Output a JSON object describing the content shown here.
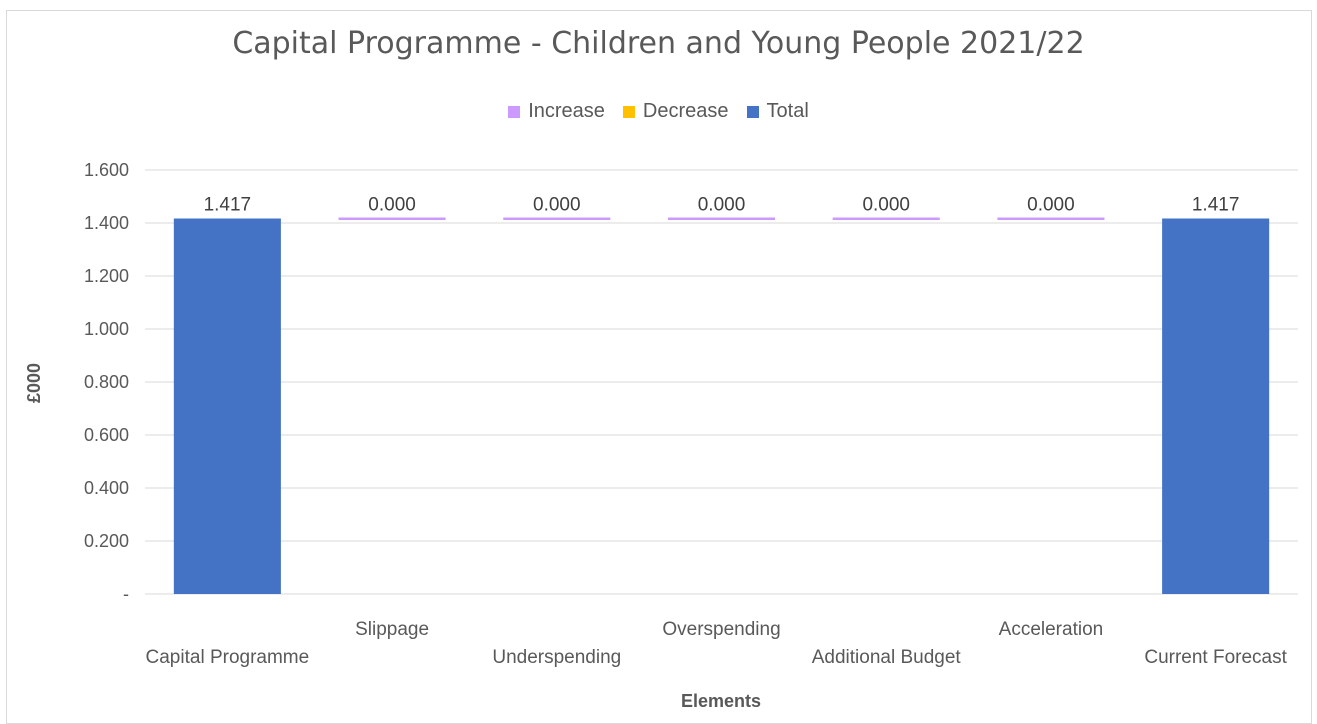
{
  "chart_data": {
    "type": "bar",
    "title": "Capital Programme - Children and Young People 2021/22",
    "xlabel": "Elements",
    "ylabel": "£000",
    "categories": [
      "Capital Programme",
      "Slippage",
      "Underspending",
      "Overspending",
      "Additional Budget",
      "Acceleration",
      "Current Forecast"
    ],
    "data_labels": [
      "1.417",
      "0.000",
      "0.000",
      "0.000",
      "0.000",
      "0.000",
      "1.417"
    ],
    "series": [
      {
        "name": "Increase",
        "color": "#cc99ff",
        "values": [
          0,
          0,
          0,
          0,
          0,
          0,
          0
        ]
      },
      {
        "name": "Decrease",
        "color": "#ffc000",
        "values": [
          0,
          0,
          0,
          0,
          0,
          0,
          0
        ]
      },
      {
        "name": "Total",
        "color": "#4472c4",
        "values": [
          1.417,
          0,
          0,
          0,
          0,
          0,
          1.417
        ]
      }
    ],
    "waterfall_base": 1.417,
    "ylim": [
      0,
      1.6
    ],
    "yticks": [
      0,
      0.2,
      0.4,
      0.6,
      0.8,
      1.0,
      1.2,
      1.4,
      1.6
    ],
    "ytick_labels": [
      "-",
      "0.200",
      "0.400",
      "0.600",
      "0.800",
      "1.000",
      "1.200",
      "1.400",
      "1.600"
    ],
    "grid": true,
    "legend_position": "top"
  }
}
